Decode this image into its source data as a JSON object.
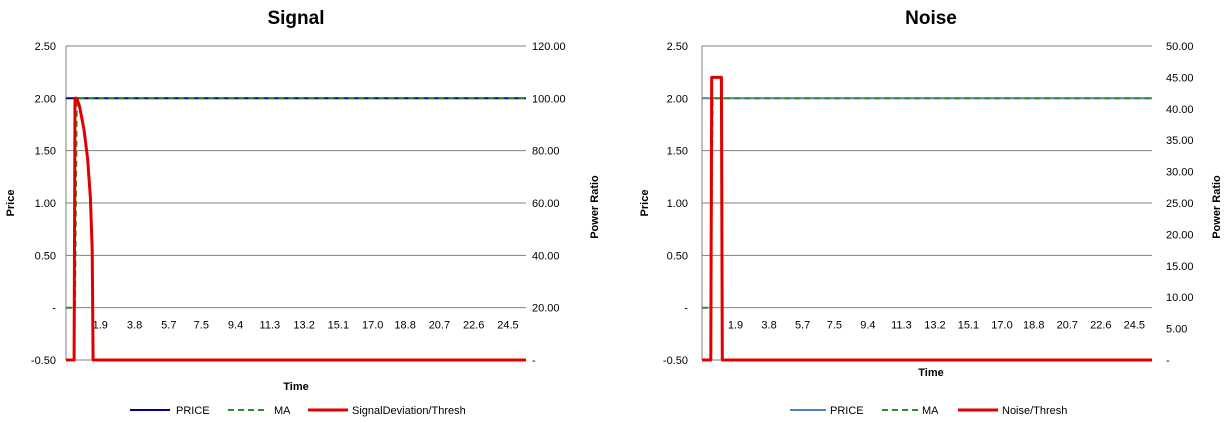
{
  "chart_data": [
    {
      "type": "line",
      "title": "Signal",
      "xlabel": "Time",
      "ylabel": "Price",
      "y2label": "Power Ratio",
      "y_ticks": [
        "2.50",
        "2.00",
        "1.50",
        "1.00",
        "0.50",
        "-",
        "-0.50"
      ],
      "y2_ticks": [
        "120.00",
        "100.00",
        "80.00",
        "60.00",
        "40.00",
        "20.00",
        "-"
      ],
      "ylim": [
        -0.5,
        2.5
      ],
      "y2lim": [
        0,
        120
      ],
      "xlim": [
        0,
        25.5
      ],
      "x_tick_labels": [
        "1.9",
        "3.8",
        "5.7",
        "7.5",
        "9.4",
        "11.3",
        "13.2",
        "15.1",
        "17.0",
        "18.8",
        "20.7",
        "22.6",
        "24.5"
      ],
      "x_tick_values": [
        1.9,
        3.8,
        5.7,
        7.5,
        9.4,
        11.3,
        13.2,
        15.1,
        17.0,
        18.8,
        20.7,
        22.6,
        24.5
      ],
      "grid": true,
      "legend_position": "bottom",
      "series": [
        {
          "name": "PRICE",
          "axis": "left",
          "color": "#00008b",
          "dash": "solid",
          "points": [
            [
              0,
              2.0
            ],
            [
              25.5,
              2.0
            ]
          ]
        },
        {
          "name": "MA",
          "axis": "left",
          "color": "#2e8b2e",
          "dash": "dashed",
          "points": [
            [
              0,
              0.0
            ],
            [
              0.5,
              0.0
            ],
            [
              0.6,
              2.0
            ],
            [
              25.5,
              2.0
            ]
          ]
        },
        {
          "name": "SignalDeviation/Thresh",
          "axis": "right",
          "color": "#e00000",
          "dash": "solid",
          "points": [
            [
              0,
              0
            ],
            [
              0.45,
              0
            ],
            [
              0.5,
              100
            ],
            [
              0.6,
              100
            ],
            [
              0.75,
              97
            ],
            [
              1.0,
              88
            ],
            [
              1.2,
              77
            ],
            [
              1.35,
              62
            ],
            [
              1.45,
              42
            ],
            [
              1.5,
              0
            ],
            [
              25.5,
              0
            ]
          ]
        }
      ]
    },
    {
      "type": "line",
      "title": "Noise",
      "xlabel": "Time",
      "ylabel": "Price",
      "y2label": "Power Ratio",
      "y_ticks": [
        "2.50",
        "2.00",
        "1.50",
        "1.00",
        "0.50",
        "-",
        "-0.50"
      ],
      "y2_ticks": [
        "50.00",
        "45.00",
        "40.00",
        "35.00",
        "30.00",
        "25.00",
        "20.00",
        "15.00",
        "10.00",
        "5.00",
        "-"
      ],
      "ylim": [
        -0.5,
        2.5
      ],
      "y2lim": [
        0,
        50
      ],
      "xlim": [
        0,
        25.5
      ],
      "x_tick_labels": [
        "1.9",
        "3.8",
        "5.7",
        "7.5",
        "9.4",
        "11.3",
        "13.2",
        "15.1",
        "17.0",
        "18.8",
        "20.7",
        "22.6",
        "24.5"
      ],
      "x_tick_values": [
        1.9,
        3.8,
        5.7,
        7.5,
        9.4,
        11.3,
        13.2,
        15.1,
        17.0,
        18.8,
        20.7,
        22.6,
        24.5
      ],
      "grid": true,
      "legend_position": "bottom",
      "series": [
        {
          "name": "PRICE",
          "axis": "left",
          "color": "#4f81bd",
          "dash": "solid",
          "points": [
            [
              0,
              2.0
            ],
            [
              25.5,
              2.0
            ]
          ]
        },
        {
          "name": "MA",
          "axis": "left",
          "color": "#2e8b2e",
          "dash": "dashed",
          "points": [
            [
              0,
              0.0
            ],
            [
              0.5,
              0.0
            ],
            [
              0.6,
              2.0
            ],
            [
              25.5,
              2.0
            ]
          ]
        },
        {
          "name": "Noise/Thresh",
          "axis": "right",
          "color": "#e00000",
          "dash": "solid",
          "points": [
            [
              0,
              0
            ],
            [
              0.5,
              0
            ],
            [
              0.55,
              45
            ],
            [
              1.1,
              45
            ],
            [
              1.15,
              0
            ],
            [
              25.5,
              0
            ]
          ]
        }
      ]
    }
  ]
}
